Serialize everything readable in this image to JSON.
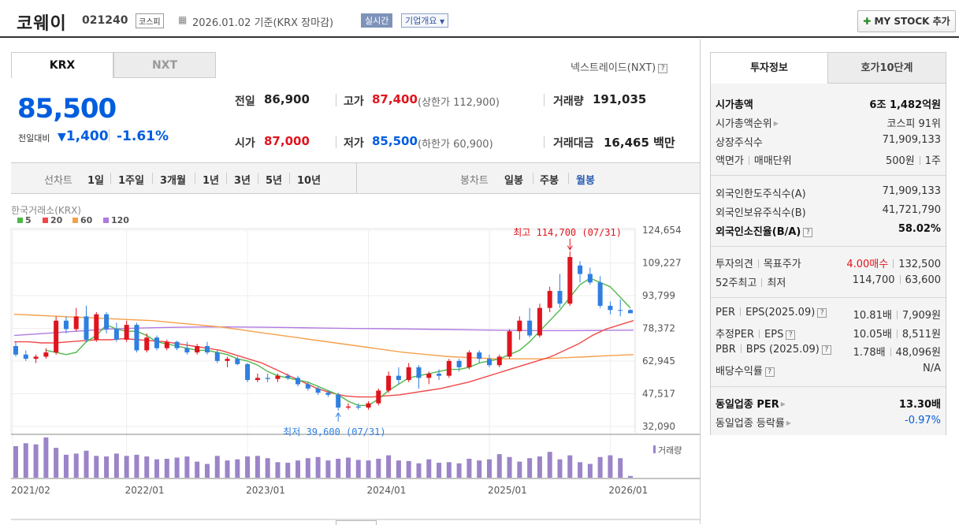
{
  "header": {
    "company_name": "코웨이",
    "stock_code": "021240",
    "market_badge": "코스피",
    "date_text": "2026.01.02 기준(KRX 장마감)",
    "realtime_label": "실시간",
    "company_overview_label": "기업개요",
    "mystock_label": "MY STOCK 추가"
  },
  "tabs": {
    "krx": "KRX",
    "nxt": "NXT",
    "nxt_trade_label": "넥스트레이드(NXT)"
  },
  "price": {
    "current": "85,500",
    "change_label": "전일대비",
    "change_amount": "1,400",
    "change_percent": "-1.61%"
  },
  "quote": {
    "prev_label": "전일",
    "prev_value": "86,900",
    "high_label": "고가",
    "high_value": "87,400",
    "upper_limit": "(상한가 112,900)",
    "volume_label": "거래량",
    "volume_value": "191,035",
    "open_label": "시가",
    "open_value": "87,000",
    "low_label": "저가",
    "low_value": "85,500",
    "lower_limit": "(하한가 60,900)",
    "amount_label": "거래대금",
    "amount_value": "16,465",
    "amount_unit": "백만"
  },
  "period_bar": {
    "line_label": "선차트",
    "line_items": [
      "1일",
      "1주일",
      "3개월",
      "1년",
      "3년",
      "5년",
      "10년"
    ],
    "candle_label": "봉차트",
    "candle_items": [
      "일봉",
      "주봉",
      "월봉"
    ],
    "active_candle": "월봉"
  },
  "chart_labels": {
    "market": "한국거래소(KRX)",
    "volume": "거래량",
    "high_note": "최고 114,700 (07/31)",
    "low_note": "최저 39,600 (07/31)"
  },
  "chart_data": {
    "type": "candlestick",
    "title": "코웨이 월봉",
    "ylim": [
      32090,
      124654
    ],
    "yticks": [
      "124,654",
      "109,227",
      "93,799",
      "78,372",
      "62,945",
      "47,517",
      "32,090"
    ],
    "xticks": [
      "2021/02",
      "2022/01",
      "2023/01",
      "2024/01",
      "2025/01",
      "2026/01"
    ],
    "legend": [
      {
        "name": "5",
        "color": "#4db848"
      },
      {
        "name": "20",
        "color": "#f04848"
      },
      {
        "name": "60",
        "color": "#f5a04a"
      },
      {
        "name": "120",
        "color": "#b07ae0"
      }
    ],
    "colors": {
      "up": "#e0141e",
      "down": "#2f7fe0",
      "volume": "#9b84c8"
    },
    "candles": [
      [
        70000,
        72000,
        65000,
        66000
      ],
      [
        66000,
        68000,
        63000,
        64000
      ],
      [
        64000,
        66000,
        62000,
        65000
      ],
      [
        65000,
        69000,
        64000,
        67000
      ],
      [
        67000,
        84000,
        66000,
        82000
      ],
      [
        82000,
        84000,
        76000,
        78000
      ],
      [
        78000,
        88000,
        77000,
        84000
      ],
      [
        84000,
        89000,
        72000,
        73000
      ],
      [
        73000,
        86000,
        72000,
        85000
      ],
      [
        85000,
        86000,
        76000,
        78000
      ],
      [
        78000,
        81000,
        72000,
        73000
      ],
      [
        73000,
        82000,
        72000,
        80000
      ],
      [
        80000,
        81000,
        67000,
        68000
      ],
      [
        68000,
        76000,
        67000,
        74000
      ],
      [
        74000,
        75000,
        68000,
        69000
      ],
      [
        69000,
        73000,
        68000,
        72000
      ],
      [
        72000,
        72500,
        68000,
        69000
      ],
      [
        69000,
        72000,
        66000,
        67000
      ],
      [
        67000,
        71000,
        66000,
        70000
      ],
      [
        70000,
        72000,
        66000,
        67000
      ],
      [
        67000,
        68000,
        62000,
        63000
      ],
      [
        63000,
        65000,
        60000,
        64000
      ],
      [
        64000,
        65000,
        61000,
        61500
      ],
      [
        61500,
        62000,
        53000,
        54000
      ],
      [
        54000,
        57000,
        53000,
        55000
      ],
      [
        55000,
        57000,
        53000,
        54500
      ],
      [
        54500,
        57000,
        53000,
        56000
      ],
      [
        56000,
        57000,
        54000,
        55000
      ],
      [
        55000,
        56000,
        51000,
        52000
      ],
      [
        52000,
        53000,
        49000,
        50000
      ],
      [
        50000,
        51000,
        47000,
        48000
      ],
      [
        48000,
        49000,
        46000,
        47000
      ],
      [
        47000,
        48000,
        39600,
        41000
      ],
      [
        41000,
        43000,
        40000,
        41500
      ],
      [
        41500,
        43000,
        40000,
        41000
      ],
      [
        41000,
        44000,
        40000,
        43000
      ],
      [
        43000,
        50000,
        42000,
        49000
      ],
      [
        49000,
        58000,
        48000,
        56000
      ],
      [
        56000,
        60000,
        52000,
        54000
      ],
      [
        54000,
        62000,
        53000,
        60000
      ],
      [
        60000,
        61000,
        50000,
        55000
      ],
      [
        55000,
        58000,
        52000,
        57000
      ],
      [
        57000,
        59000,
        54000,
        56000
      ],
      [
        56000,
        64000,
        55000,
        63000
      ],
      [
        63000,
        64000,
        58000,
        60000
      ],
      [
        60000,
        68000,
        59000,
        67000
      ],
      [
        67000,
        68000,
        62000,
        64000
      ],
      [
        64000,
        66000,
        60000,
        61000
      ],
      [
        61000,
        66000,
        60000,
        65000
      ],
      [
        65000,
        78000,
        64000,
        77000
      ],
      [
        77000,
        84000,
        73000,
        82000
      ],
      [
        82000,
        88000,
        74000,
        75000
      ],
      [
        75000,
        90000,
        74000,
        88000
      ],
      [
        88000,
        98000,
        86000,
        96000
      ],
      [
        96000,
        104000,
        88000,
        90000
      ],
      [
        90000,
        114700,
        89000,
        112000
      ],
      [
        108000,
        110000,
        100000,
        104000
      ],
      [
        104000,
        107000,
        99000,
        100000
      ],
      [
        100000,
        103000,
        88000,
        89000
      ],
      [
        89000,
        91000,
        85000,
        87000
      ],
      [
        87000,
        92000,
        84000,
        86900
      ],
      [
        87000,
        87400,
        85500,
        85500
      ]
    ],
    "volume": [
      55,
      60,
      58,
      70,
      52,
      40,
      42,
      47,
      38,
      37,
      42,
      38,
      40,
      37,
      32,
      33,
      35,
      37,
      28,
      24,
      38,
      30,
      32,
      37,
      38,
      34,
      27,
      26,
      30,
      34,
      36,
      30,
      33,
      35,
      31,
      30,
      33,
      39,
      30,
      29,
      25,
      32,
      26,
      27,
      25,
      33,
      30,
      32,
      41,
      36,
      28,
      34,
      37,
      45,
      32,
      39,
      27,
      24,
      36,
      39,
      34,
      3
    ],
    "ma5": [
      68000,
      67000,
      66000,
      67000,
      72000,
      75000,
      80000,
      78000,
      77000,
      77000,
      75000,
      72000,
      71000,
      70000,
      69000,
      68000,
      68000,
      67000,
      66000,
      64000,
      63000,
      61000,
      58000,
      56000,
      55000,
      54000,
      53000,
      51000,
      49000,
      47000,
      44000,
      42000,
      42000,
      45000,
      49000,
      52000,
      55000,
      56000,
      57000,
      58000,
      59000,
      59000,
      60000,
      62000,
      63000,
      64000,
      66000,
      68000,
      72000,
      77000,
      82000,
      87000,
      93000,
      99000,
      102000,
      100000,
      98000,
      93000,
      88000
    ],
    "ma20": [
      72000,
      72000,
      71500,
      71500,
      72000,
      72500,
      73000,
      73000,
      73500,
      73000,
      72500,
      72000,
      71000,
      70000,
      69000,
      68000,
      66000,
      64000,
      62000,
      59000,
      56000,
      53000,
      50000,
      48000,
      46500,
      46000,
      46000,
      46500,
      47000,
      48000,
      49000,
      50000,
      51500,
      53000,
      55000,
      57000,
      59000,
      61000,
      63000,
      65000,
      68000,
      71000,
      75000,
      78000,
      80000,
      82000
    ],
    "ma60": [
      85000,
      84500,
      84000,
      83500,
      83000,
      82500,
      82000,
      81000,
      80000,
      79000,
      77500,
      76000,
      74500,
      73000,
      71500,
      70000,
      68500,
      67000,
      66000,
      65000,
      64500,
      64000,
      64000,
      64000,
      64500,
      65000,
      65500,
      66000
    ],
    "ma120": [
      75000,
      76000,
      77000,
      78000,
      78500,
      78800,
      79000,
      79000,
      78900,
      78700,
      78500,
      78300,
      78200,
      78000,
      77800,
      77600,
      77400,
      77300,
      77300,
      77400,
      77500
    ]
  },
  "right_panel": {
    "tab1": "투자정보",
    "tab2": "호가10단계",
    "market_cap_label": "시가총액",
    "market_cap_value": "6조 1,482억원",
    "cap_rank_label": "시가총액순위",
    "cap_rank_value": "코스피 91위",
    "shares_label": "상장주식수",
    "shares_value": "71,909,133",
    "par_label": "액면가",
    "unit_label": "매매단위",
    "par_value": "500원",
    "unit_value": "1주",
    "foreign_limit_label": "외국인한도주식수(A)",
    "foreign_limit_value": "71,909,133",
    "foreign_hold_label": "외국인보유주식수(B)",
    "foreign_hold_value": "41,721,790",
    "foreign_rate_label": "외국인소진율(B/A)",
    "foreign_rate_value": "58.02%",
    "opinion_label": "투자의견",
    "target_label": "목표주가",
    "opinion_value": "4.00매수",
    "target_value": "132,500",
    "w52_label": "52주최고",
    "w52_low_label": "최저",
    "w52_high": "114,700",
    "w52_low": "63,600",
    "per_label": "PER",
    "eps_label": "EPS(2025.09)",
    "per_value": "10.81배",
    "eps_value": "7,909원",
    "est_per_label": "추정PER",
    "est_eps_label": "EPS",
    "est_per_value": "10.05배",
    "est_eps_value": "8,511원",
    "pbr_label": "PBR",
    "bps_label": "BPS (2025.09)",
    "pbr_value": "1.78배",
    "bps_value": "48,096원",
    "div_label": "배당수익률",
    "div_value": "N/A",
    "sector_per_label": "동일업종 PER",
    "sector_per_value": "13.30배",
    "sector_rate_label": "동일업종 등락률",
    "sector_rate_value": "-0.97%"
  }
}
